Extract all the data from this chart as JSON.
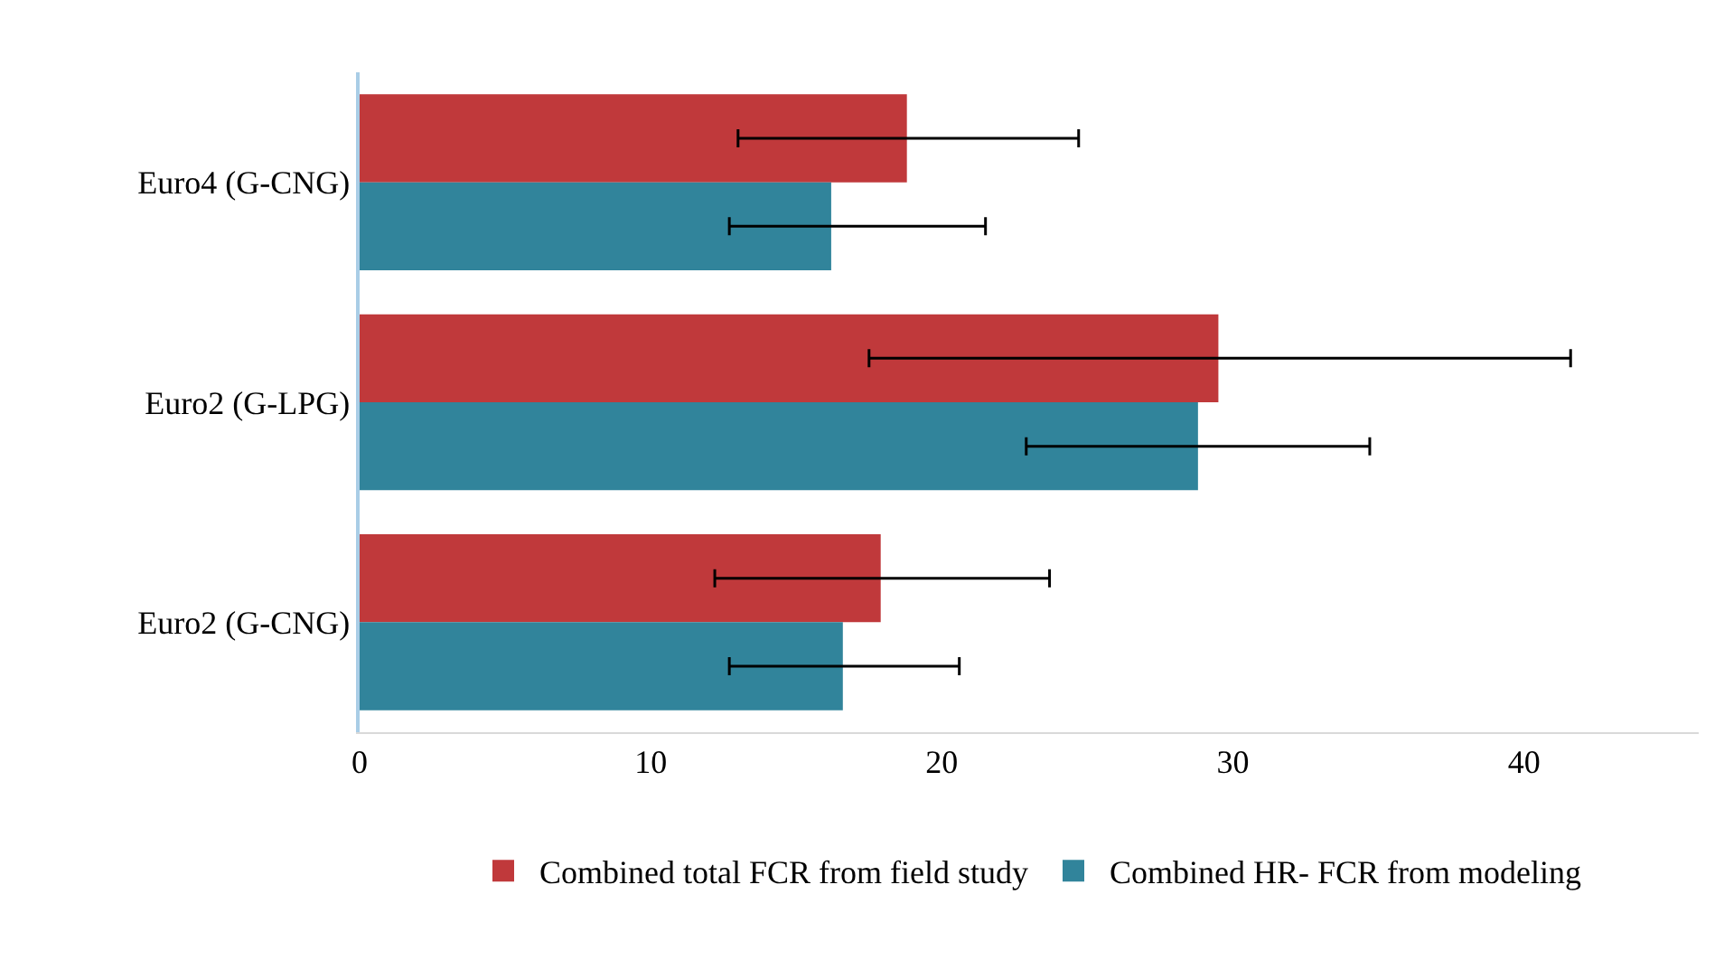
{
  "chart_data": {
    "type": "bar",
    "orientation": "horizontal",
    "categories": [
      "Euro4 (G-CNG)",
      "Euro2 (G-LPG)",
      "Euro2 (G-CNG)"
    ],
    "series": [
      {
        "name": "Combined total FCR from field study",
        "color": "#c0393b",
        "values": [
          18.8,
          29.5,
          17.9
        ],
        "errors": [
          [
            13.0,
            24.7
          ],
          [
            17.5,
            41.6
          ],
          [
            12.2,
            23.7
          ]
        ]
      },
      {
        "name": "Combined HR- FCR from modeling",
        "color": "#31849b",
        "values": [
          16.2,
          28.8,
          16.6
        ],
        "errors": [
          [
            12.7,
            21.5
          ],
          [
            22.9,
            34.7
          ],
          [
            12.7,
            20.6
          ]
        ]
      }
    ],
    "xlim": [
      0,
      46
    ],
    "xticks": [
      0,
      10,
      20,
      30,
      40
    ],
    "grid": false,
    "legend": "bottom"
  }
}
